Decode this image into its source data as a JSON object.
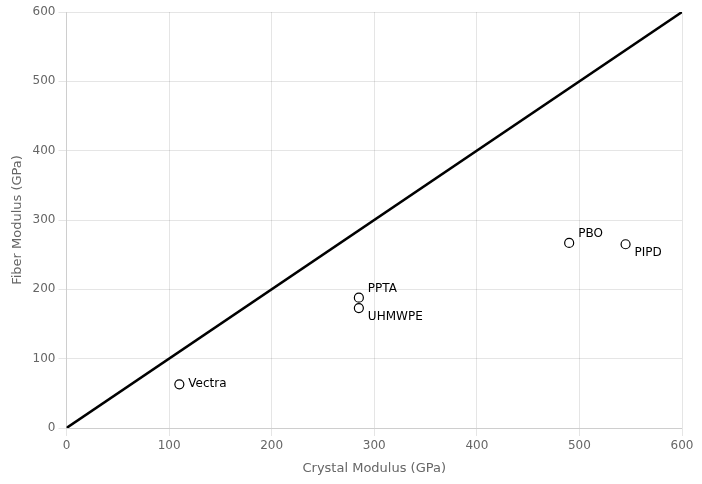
{
  "chart_data": {
    "type": "scatter",
    "xlabel": "Crystal Modulus (GPa)",
    "ylabel": "Fiber Modulus (GPa)",
    "x": [
      110,
      285,
      285,
      490,
      545
    ],
    "values": [
      63,
      188,
      173,
      267,
      265
    ],
    "point_labels": [
      "Vectra",
      "PPTA",
      "UHMWPE",
      "PBO",
      "PIPD"
    ],
    "marker": "circle",
    "color": "black",
    "reference_line": {
      "x": [
        0,
        600
      ],
      "y": [
        0,
        600
      ],
      "color": "black"
    },
    "xlim": [
      0,
      600
    ],
    "ylim": [
      0,
      600
    ],
    "xticks": [
      0,
      100,
      200,
      300,
      400,
      500,
      600
    ],
    "yticks": [
      0,
      100,
      200,
      300,
      400,
      500,
      600
    ],
    "grid": true
  }
}
